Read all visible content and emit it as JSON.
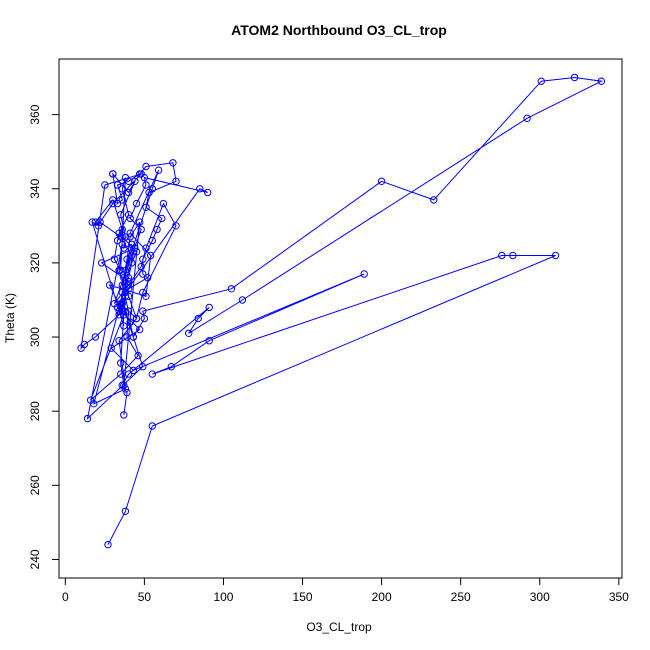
{
  "chart_data": {
    "type": "line",
    "title": "ATOM2 Northbound O3_CL_trop",
    "xlabel": "O3_CL_trop",
    "ylabel": "Theta (K)",
    "xlim": [
      -4,
      352
    ],
    "ylim": [
      235,
      375
    ],
    "x_ticks": [
      0,
      50,
      100,
      150,
      200,
      250,
      300,
      350
    ],
    "y_ticks": [
      240,
      260,
      280,
      300,
      320,
      340,
      360
    ],
    "x_tick_labels": [
      "0",
      "50",
      "100",
      "150",
      "200",
      "250",
      "300",
      "350"
    ],
    "y_tick_labels": [
      "240",
      "260",
      "280",
      "300",
      "320",
      "340",
      "360"
    ],
    "grid": false,
    "series": [
      {
        "color": "#0000ff",
        "x": [
          27,
          38,
          55,
          310,
          283,
          276,
          55,
          67,
          91,
          189,
          43,
          29,
          47,
          33,
          40,
          23,
          44,
          18,
          38,
          34,
          45,
          40,
          34,
          36,
          14,
          49,
          43,
          36,
          37,
          39,
          41,
          47,
          37,
          35,
          37,
          16,
          35,
          46,
          39,
          40,
          36,
          42,
          35,
          22,
          30,
          48,
          25,
          10,
          12,
          19,
          34,
          36,
          40,
          42,
          45,
          34,
          40,
          36,
          38,
          35,
          31,
          33,
          36,
          30,
          19,
          21,
          17,
          37,
          34,
          40,
          52,
          49,
          49,
          55,
          58,
          61,
          51,
          53,
          70,
          68,
          51,
          47,
          40,
          33,
          36,
          33,
          30,
          30,
          40,
          44,
          35,
          38,
          37,
          42,
          38,
          55,
          59,
          41,
          54,
          51,
          28,
          36,
          38,
          85,
          90,
          50,
          51,
          45,
          41,
          48,
          31,
          40,
          48,
          51,
          62,
          70,
          49,
          45,
          35,
          38,
          37,
          41,
          43,
          50,
          49,
          105,
          200,
          233,
          301,
          322,
          339,
          292,
          112,
          78,
          84,
          91,
          40,
          36,
          39,
          37
        ],
        "y": [
          244,
          253,
          276,
          322,
          322,
          322,
          290,
          292,
          299,
          317,
          291,
          297,
          302,
          308,
          315,
          320,
          324,
          282,
          286,
          299,
          305,
          311,
          318,
          325,
          278,
          292,
          300,
          309,
          316,
          321,
          327,
          331,
          287,
          293,
          306,
          283,
          290,
          295,
          300,
          307,
          314,
          322,
          327,
          331,
          336,
          344,
          341,
          297,
          298,
          300,
          306,
          312,
          316,
          320,
          323,
          328,
          333,
          340,
          343,
          318,
          321,
          326,
          329,
          337,
          331,
          330,
          331,
          303,
          307,
          313,
          316,
          317,
          321,
          326,
          329,
          332,
          335,
          339,
          342,
          347,
          346,
          344,
          342,
          341,
          337,
          336,
          344,
          344,
          339,
          342,
          333,
          327,
          324,
          325,
          318,
          340,
          345,
          328,
          322,
          311,
          314,
          307,
          312,
          340,
          339,
          343,
          341,
          336,
          332,
          329,
          309,
          314,
          319,
          324,
          336,
          330,
          312,
          305,
          309,
          311,
          307,
          304,
          300,
          305,
          307,
          313,
          342,
          337,
          369,
          370,
          369,
          359,
          310,
          301,
          305,
          308,
          290,
          287,
          285,
          279
        ]
      }
    ]
  }
}
